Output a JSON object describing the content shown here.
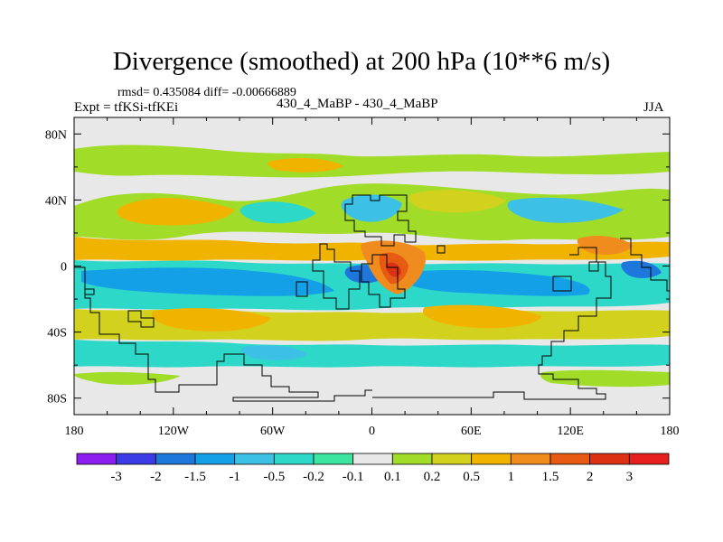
{
  "chart_data": {
    "type": "heatmap",
    "title": "Divergence (smoothed) at 200 hPa (10**6 m/s)",
    "stats_text": "rmsd= 0.435084 diff= -0.00666889",
    "left_label": "Expt = tfKSi-tfKEi",
    "center_label": "430_4_MaBP - 430_4_MaBP",
    "right_label": "JJA",
    "x_ticks": [
      "180",
      "120W",
      "60W",
      "0",
      "60E",
      "120E",
      "180"
    ],
    "x_tick_values": [
      -180,
      -120,
      -60,
      0,
      60,
      120,
      180
    ],
    "y_ticks": [
      "80N",
      "40N",
      "0",
      "40S",
      "80S"
    ],
    "y_tick_values": [
      80,
      40,
      0,
      -40,
      -80
    ],
    "xlim": [
      -180,
      180
    ],
    "ylim": [
      -90,
      90
    ],
    "colorbar": {
      "labels": [
        "-3",
        "-2",
        "-1.5",
        "-1",
        "-0.5",
        "-0.2",
        "-0.1",
        "0.1",
        "0.2",
        "0.5",
        "1",
        "1.5",
        "2",
        "3"
      ],
      "colors": [
        "#8c1ef0",
        "#3c3ce6",
        "#1e78dc",
        "#14a0e6",
        "#3cc0e6",
        "#2ed8c8",
        "#3ce6a0",
        "#e8e8e8",
        "#a0dc28",
        "#d2d21e",
        "#f0b400",
        "#f08c1e",
        "#e65a14",
        "#dc3214",
        "#e61e1e"
      ]
    }
  }
}
